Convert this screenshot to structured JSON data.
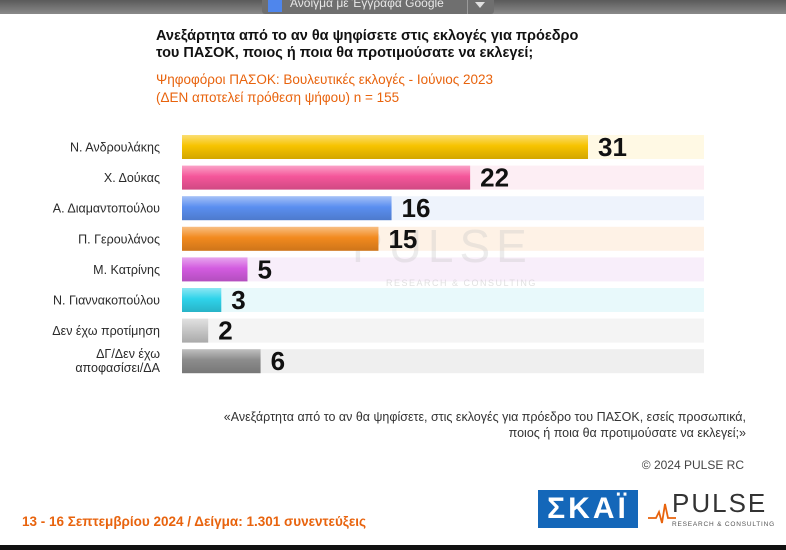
{
  "toolbar": {
    "open_with_label": "Άνοιγμα με Έγγραφα Google",
    "doc_icon": "google-docs-icon",
    "caret_icon": "chevron-down-icon"
  },
  "header": {
    "title_line1": "Ανεξάρτητα από το αν θα ψηφίσετε στις εκλογές για πρόεδρο",
    "title_line2": "του ΠΑΣΟΚ, ποιος ή ποια θα προτιμούσατε να εκλεγεί;",
    "subtitle_line1": "Ψηφοφόροι ΠΑΣΟΚ: Βουλευτικές εκλογές - Ιούνιος 2023",
    "subtitle_line2": "(ΔΕΝ αποτελεί πρόθεση ψήφου)   n = 155"
  },
  "watermark": {
    "name": "PULSE",
    "tagline": "RESEARCH & CONSULTING"
  },
  "chart_data": {
    "type": "bar",
    "orientation": "horizontal",
    "title": "Ανεξάρτητα από το αν θα ψηφίσετε στις εκλογές για πρόεδρο του ΠΑΣΟΚ, ποιος ή ποια θα προτιμούσατε να εκλεγεί;",
    "categories": [
      "Ν. Ανδρουλάκης",
      "Χ. Δούκας",
      "Α. Διαμαντοπούλου",
      "Π. Γερουλάνος",
      "Μ. Κατρίνης",
      "Ν. Γιαννακοπούλου",
      "Δεν έχω προτίμηση",
      "ΔΓ/Δεν έχω αποφασίσει/ΔΑ"
    ],
    "values": [
      31,
      22,
      16,
      15,
      5,
      3,
      2,
      6
    ],
    "value_labels": [
      "31",
      "22",
      "16",
      "15",
      "5",
      "3",
      "2",
      "6"
    ],
    "colors": [
      "#f7c300",
      "#f5569a",
      "#5b8ff0",
      "#f28a1e",
      "#d35ce0",
      "#2fd3ea",
      "#c8c8c8",
      "#8c8c8c"
    ],
    "track_colors": [
      "#fff9e4",
      "#fdeef4",
      "#eef3fc",
      "#fef2e6",
      "#f8eefa",
      "#e8f9fb",
      "#f4f4f4",
      "#efefef"
    ],
    "xlim": [
      0,
      40
    ],
    "grid": false,
    "legend": "none",
    "xlabel": "",
    "ylabel": ""
  },
  "footer": {
    "quote_line1": "«Ανεξάρτητα από το αν θα ψηφίσετε, στις εκλογές για πρόεδρο του ΠΑΣΟΚ, εσείς προσωπικά,",
    "quote_line2": "ποιος ή ποια θα προτιμούσατε να εκλεγεί;»",
    "copyright": "© 2024 PULSE RC",
    "fieldwork": "13 - 16 Σεπτεμβρίου 2024  /  Δείγμα:  1.301 συνεντεύξεις",
    "skai_logo": "ΣΚΑΪ",
    "pulse_logo": "PULSE",
    "pulse_tagline": "RESEARCH & CONSULTING"
  }
}
